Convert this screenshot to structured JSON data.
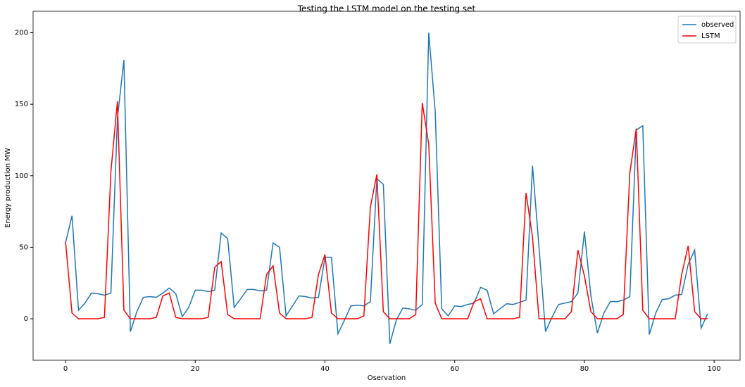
{
  "chart_data": {
    "type": "line",
    "title": "Testing the LSTM model on the testing set",
    "x_label": "Oservation",
    "y_label": "Energy production MW",
    "x": [
      0,
      1,
      2,
      3,
      4,
      5,
      6,
      7,
      8,
      9,
      10,
      11,
      12,
      13,
      14,
      15,
      16,
      17,
      18,
      19,
      20,
      21,
      22,
      23,
      24,
      25,
      26,
      27,
      28,
      29,
      30,
      31,
      32,
      33,
      34,
      35,
      36,
      37,
      38,
      39,
      40,
      41,
      42,
      43,
      44,
      45,
      46,
      47,
      48,
      49,
      50,
      51,
      52,
      53,
      54,
      55,
      56,
      57,
      58,
      59,
      60,
      61,
      62,
      63,
      64,
      65,
      66,
      67,
      68,
      69,
      70,
      71,
      72,
      73,
      74,
      75,
      76,
      77,
      78,
      79,
      80,
      81,
      82,
      83,
      84,
      85,
      86,
      87,
      88,
      89,
      90,
      91,
      92,
      93,
      94,
      95,
      96,
      97,
      98,
      99
    ],
    "series": [
      {
        "name": "observed",
        "color": "#1f77b4",
        "values": [
          53,
          72,
          6,
          11,
          18,
          17.5,
          16.5,
          18,
          140,
          181,
          -9,
          5,
          15,
          15.5,
          15,
          18,
          21.5,
          17.5,
          1.5,
          8,
          20,
          20,
          19,
          20,
          60,
          56,
          8,
          14,
          20.5,
          20.5,
          19.5,
          20,
          53,
          50,
          2,
          9,
          16,
          15.5,
          14.5,
          15,
          43,
          43,
          -10.5,
          -1,
          9,
          9.5,
          9,
          12,
          98,
          94,
          -17.5,
          -1,
          7.5,
          7,
          6,
          10,
          200,
          145,
          7,
          2,
          9,
          8.5,
          10,
          11,
          22,
          20,
          3.5,
          7,
          10.5,
          10,
          11.5,
          13,
          107,
          50,
          -9,
          1,
          10,
          11,
          12,
          18,
          61,
          16,
          -10,
          4,
          12,
          12,
          13,
          15.5,
          132,
          135,
          -11,
          4,
          13.5,
          14,
          16.5,
          17,
          38,
          48,
          -6.5,
          3.5
        ]
      },
      {
        "name": "LSTM",
        "color": "#ff0000",
        "values": [
          54,
          4,
          0,
          0,
          0,
          0,
          1,
          103,
          152,
          6,
          0,
          0,
          0,
          0,
          1,
          16,
          18,
          1,
          0,
          0,
          0,
          0,
          1,
          36,
          40,
          3,
          0,
          0,
          0,
          0,
          0,
          31,
          37,
          4,
          0,
          0,
          0,
          0,
          1,
          31,
          45,
          4,
          0,
          0,
          0,
          0,
          2,
          78,
          101,
          5,
          0,
          0,
          0,
          0,
          3,
          151,
          122,
          11,
          0,
          0,
          0,
          0,
          0,
          12,
          14,
          0,
          0,
          0,
          0,
          0,
          1,
          88,
          57,
          0,
          0,
          0,
          0,
          0,
          5,
          48,
          30,
          5,
          0,
          0,
          0,
          0,
          3,
          102,
          133,
          6,
          0,
          0,
          0,
          0,
          0,
          31,
          51,
          5,
          0,
          0
        ]
      }
    ],
    "xlim": [
      -5,
      104
    ],
    "ylim": [
      -29,
      215
    ],
    "xticks": [
      0,
      20,
      40,
      60,
      80,
      100
    ],
    "yticks": [
      0,
      50,
      100,
      150,
      200
    ],
    "legend": "upper right"
  }
}
